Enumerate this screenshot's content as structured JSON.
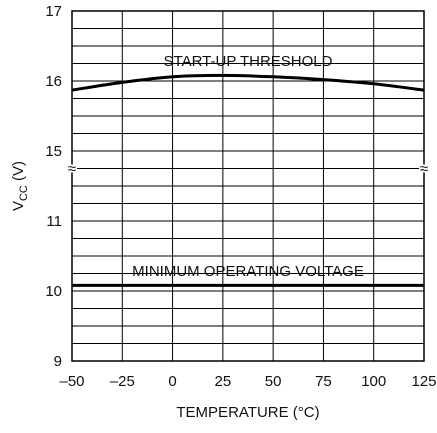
{
  "chart_data": {
    "type": "line",
    "xlabel": "TEMPERATURE (°C)",
    "ylabel": {
      "main": "V",
      "sub": "CC",
      "unit": " (V)"
    },
    "xlim": [
      -50,
      125
    ],
    "x_ticks": [
      "–50",
      "–25",
      "0",
      "25",
      "50",
      "75",
      "100",
      "125"
    ],
    "y_ticks": [
      "9",
      "10",
      "11",
      "15",
      "16",
      "17"
    ],
    "y_axis_break": {
      "lower_top": 11.75,
      "upper_bottom": 14.75,
      "symbol": "≈"
    },
    "grid": true,
    "series": [
      {
        "name": "START-UP THRESHOLD",
        "x": [
          -50,
          -25,
          0,
          25,
          50,
          75,
          100,
          125
        ],
        "y": [
          15.87,
          15.98,
          16.06,
          16.08,
          16.06,
          16.02,
          15.96,
          15.87
        ]
      },
      {
        "name": "MINIMUM OPERATING VOLTAGE",
        "x": [
          -50,
          -25,
          0,
          25,
          50,
          75,
          100,
          125
        ],
        "y": [
          10.08,
          10.08,
          10.08,
          10.08,
          10.08,
          10.08,
          10.08,
          10.08
        ]
      }
    ]
  }
}
